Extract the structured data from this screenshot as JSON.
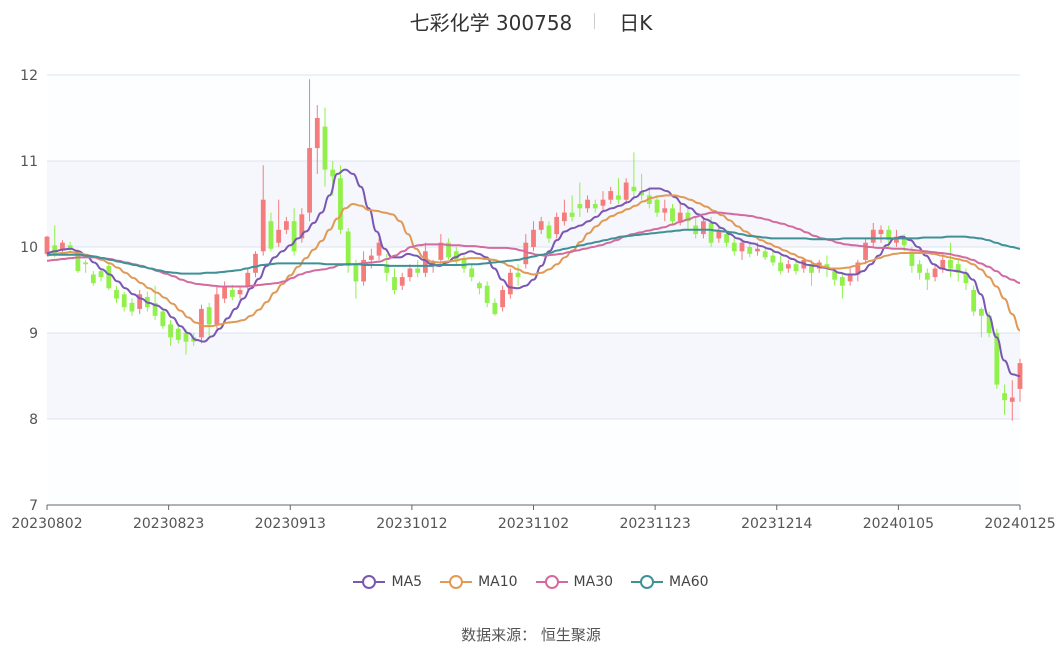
{
  "header": {
    "title": "七彩化学 300758",
    "period": "日K"
  },
  "source": "数据来源： 恒生聚源",
  "chart_data": {
    "type": "candlestick",
    "ylim": [
      7,
      12
    ],
    "yticks": [
      7,
      8,
      9,
      10,
      11,
      12
    ],
    "xtick_labels": [
      "20230802",
      "20230823",
      "20230913",
      "20231012",
      "20231102",
      "20231123",
      "20231214",
      "20240105",
      "20240125"
    ],
    "colors": {
      "up": "#f47c7c",
      "down": "#91f04a",
      "band": "#f3f5fb",
      "grid": "#dde3ee"
    },
    "candles": [
      [
        9.92,
        10.12,
        9.9,
        10.13
      ],
      [
        10.02,
        9.92,
        9.88,
        10.25
      ],
      [
        9.96,
        10.05,
        9.94,
        10.08
      ],
      [
        10.02,
        9.97,
        9.93,
        10.06
      ],
      [
        9.92,
        9.72,
        9.7,
        9.98
      ],
      [
        9.82,
        9.8,
        9.7,
        9.85
      ],
      [
        9.68,
        9.58,
        9.55,
        9.72
      ],
      [
        9.72,
        9.65,
        9.6,
        9.75
      ],
      [
        9.78,
        9.52,
        9.5,
        9.8
      ],
      [
        9.5,
        9.4,
        9.35,
        9.55
      ],
      [
        9.45,
        9.3,
        9.25,
        9.48
      ],
      [
        9.35,
        9.25,
        9.2,
        9.4
      ],
      [
        9.28,
        9.45,
        9.22,
        9.5
      ],
      [
        9.42,
        9.3,
        9.25,
        9.48
      ],
      [
        9.35,
        9.2,
        9.15,
        9.55
      ],
      [
        9.25,
        9.08,
        9.05,
        9.3
      ],
      [
        9.1,
        8.95,
        8.85,
        9.15
      ],
      [
        9.05,
        8.92,
        8.88,
        9.1
      ],
      [
        9.0,
        8.9,
        8.75,
        9.05
      ],
      [
        8.95,
        8.9,
        8.85,
        9.0
      ],
      [
        8.95,
        9.28,
        8.88,
        9.33
      ],
      [
        9.3,
        9.1,
        8.95,
        9.35
      ],
      [
        9.1,
        9.45,
        9.05,
        9.55
      ],
      [
        9.4,
        9.55,
        9.35,
        9.6
      ],
      [
        9.5,
        9.42,
        9.38,
        9.56
      ],
      [
        9.45,
        9.5,
        9.4,
        9.55
      ],
      [
        9.55,
        9.7,
        9.5,
        9.75
      ],
      [
        9.7,
        9.92,
        9.65,
        9.95
      ],
      [
        9.95,
        10.55,
        9.9,
        10.95
      ],
      [
        10.3,
        9.98,
        9.95,
        10.4
      ],
      [
        10.05,
        10.2,
        10.0,
        10.55
      ],
      [
        10.2,
        10.3,
        10.15,
        10.35
      ],
      [
        10.3,
        9.95,
        9.9,
        10.45
      ],
      [
        10.1,
        10.38,
        10.05,
        10.45
      ],
      [
        10.4,
        11.15,
        10.3,
        11.95
      ],
      [
        11.15,
        11.5,
        10.85,
        11.65
      ],
      [
        11.4,
        10.9,
        10.7,
        11.62
      ],
      [
        10.9,
        10.82,
        10.6,
        11.0
      ],
      [
        10.8,
        10.2,
        10.15,
        10.95
      ],
      [
        10.18,
        9.78,
        9.7,
        10.22
      ],
      [
        9.8,
        9.6,
        9.4,
        9.85
      ],
      [
        9.6,
        9.85,
        9.55,
        9.95
      ],
      [
        9.85,
        9.9,
        9.75,
        9.98
      ],
      [
        9.9,
        10.05,
        9.85,
        10.1
      ],
      [
        9.8,
        9.7,
        9.6,
        9.92
      ],
      [
        9.65,
        9.5,
        9.45,
        9.75
      ],
      [
        9.55,
        9.65,
        9.5,
        9.7
      ],
      [
        9.65,
        9.75,
        9.6,
        9.8
      ],
      [
        9.75,
        9.7,
        9.65,
        9.85
      ],
      [
        9.7,
        9.95,
        9.65,
        10.05
      ],
      [
        9.8,
        9.82,
        9.7,
        9.85
      ],
      [
        9.85,
        10.05,
        9.8,
        10.15
      ],
      [
        10.05,
        9.88,
        9.85,
        10.1
      ],
      [
        9.95,
        9.85,
        9.8,
        10.0
      ],
      [
        9.85,
        9.75,
        9.7,
        9.9
      ],
      [
        9.75,
        9.65,
        9.6,
        9.8
      ],
      [
        9.58,
        9.52,
        9.45,
        9.6
      ],
      [
        9.55,
        9.35,
        9.3,
        9.6
      ],
      [
        9.35,
        9.22,
        9.2,
        9.4
      ],
      [
        9.3,
        9.5,
        9.25,
        9.55
      ],
      [
        9.45,
        9.7,
        9.4,
        9.75
      ],
      [
        9.7,
        9.65,
        9.55,
        9.8
      ],
      [
        9.8,
        10.05,
        9.75,
        10.15
      ],
      [
        10.0,
        10.2,
        9.95,
        10.3
      ],
      [
        10.2,
        10.3,
        10.15,
        10.35
      ],
      [
        10.25,
        10.1,
        10.05,
        10.3
      ],
      [
        10.15,
        10.35,
        10.1,
        10.4
      ],
      [
        10.3,
        10.4,
        10.25,
        10.55
      ],
      [
        10.4,
        10.35,
        10.3,
        10.6
      ],
      [
        10.5,
        10.45,
        10.35,
        10.75
      ],
      [
        10.45,
        10.55,
        10.4,
        10.6
      ],
      [
        10.5,
        10.45,
        10.4,
        10.55
      ],
      [
        10.48,
        10.55,
        10.4,
        10.65
      ],
      [
        10.55,
        10.65,
        10.5,
        10.7
      ],
      [
        10.6,
        10.55,
        10.5,
        10.8
      ],
      [
        10.55,
        10.75,
        10.5,
        10.8
      ],
      [
        10.7,
        10.65,
        10.55,
        11.1
      ],
      [
        10.65,
        10.6,
        10.55,
        10.85
      ],
      [
        10.6,
        10.5,
        10.45,
        10.7
      ],
      [
        10.55,
        10.4,
        10.35,
        10.6
      ],
      [
        10.4,
        10.45,
        10.3,
        10.55
      ],
      [
        10.45,
        10.3,
        10.25,
        10.5
      ],
      [
        10.3,
        10.4,
        10.25,
        10.5
      ],
      [
        10.4,
        10.3,
        10.2,
        10.45
      ],
      [
        10.25,
        10.15,
        10.1,
        10.35
      ],
      [
        10.15,
        10.3,
        10.1,
        10.35
      ],
      [
        10.28,
        10.05,
        10.0,
        10.35
      ],
      [
        10.1,
        10.18,
        10.05,
        10.25
      ],
      [
        10.15,
        10.05,
        10.0,
        10.2
      ],
      [
        10.05,
        9.95,
        9.9,
        10.1
      ],
      [
        9.95,
        10.05,
        9.85,
        10.1
      ],
      [
        10.0,
        9.92,
        9.88,
        10.05
      ],
      [
        9.95,
        9.98,
        9.9,
        10.05
      ],
      [
        9.95,
        9.88,
        9.85,
        10.0
      ],
      [
        9.9,
        9.82,
        9.78,
        9.95
      ],
      [
        9.82,
        9.72,
        9.68,
        9.9
      ],
      [
        9.75,
        9.8,
        9.7,
        9.85
      ],
      [
        9.8,
        9.72,
        9.68,
        9.85
      ],
      [
        9.75,
        9.85,
        9.7,
        9.88
      ],
      [
        9.8,
        9.7,
        9.55,
        9.85
      ],
      [
        9.75,
        9.82,
        9.7,
        9.85
      ],
      [
        9.8,
        9.75,
        9.65,
        9.9
      ],
      [
        9.72,
        9.62,
        9.55,
        9.75
      ],
      [
        9.65,
        9.55,
        9.4,
        9.7
      ],
      [
        9.6,
        9.68,
        9.55,
        9.75
      ],
      [
        9.68,
        9.82,
        9.6,
        9.85
      ],
      [
        9.85,
        10.05,
        9.8,
        10.1
      ],
      [
        10.05,
        10.2,
        10.0,
        10.28
      ],
      [
        10.15,
        10.2,
        10.05,
        10.25
      ],
      [
        10.2,
        10.08,
        10.0,
        10.25
      ],
      [
        10.05,
        10.12,
        10.0,
        10.2
      ],
      [
        10.1,
        10.02,
        9.95,
        10.15
      ],
      [
        9.95,
        9.78,
        9.7,
        10.0
      ],
      [
        9.8,
        9.7,
        9.62,
        9.85
      ],
      [
        9.7,
        9.62,
        9.5,
        9.75
      ],
      [
        9.65,
        9.75,
        9.6,
        9.8
      ],
      [
        9.75,
        9.85,
        9.7,
        9.92
      ],
      [
        9.85,
        9.75,
        9.65,
        10.05
      ],
      [
        9.8,
        9.7,
        9.6,
        9.85
      ],
      [
        9.7,
        9.58,
        9.5,
        9.75
      ],
      [
        9.5,
        9.25,
        9.2,
        9.55
      ],
      [
        9.28,
        9.2,
        8.95,
        9.3
      ],
      [
        9.2,
        9.0,
        8.95,
        9.25
      ],
      [
        9.0,
        8.4,
        8.35,
        9.05
      ],
      [
        8.3,
        8.22,
        8.05,
        8.4
      ],
      [
        8.2,
        8.25,
        7.98,
        8.45
      ],
      [
        8.35,
        8.65,
        8.2,
        8.7
      ]
    ],
    "series": [
      {
        "name": "MA5",
        "color": "#7b57b4",
        "values": [
          9.93,
          9.95,
          9.97,
          9.98,
          9.95,
          9.9,
          9.82,
          9.74,
          9.68,
          9.6,
          9.52,
          9.45,
          9.4,
          9.35,
          9.32,
          9.27,
          9.18,
          9.08,
          9.0,
          8.92,
          8.9,
          8.96,
          9.05,
          9.17,
          9.28,
          9.4,
          9.52,
          9.63,
          9.78,
          9.88,
          9.95,
          10.02,
          10.1,
          10.18,
          10.28,
          10.4,
          10.6,
          10.85,
          10.9,
          10.85,
          10.7,
          10.45,
          10.18,
          9.98,
          9.88,
          9.88,
          9.92,
          9.9,
          9.85,
          9.8,
          9.78,
          9.82,
          9.88,
          9.92,
          9.95,
          9.92,
          9.88,
          9.75,
          9.62,
          9.53,
          9.52,
          9.55,
          9.62,
          9.78,
          9.95,
          10.08,
          10.18,
          10.22,
          10.25,
          10.3,
          10.35,
          10.42,
          10.45,
          10.48,
          10.52,
          10.58,
          10.65,
          10.68,
          10.68,
          10.65,
          10.58,
          10.5,
          10.45,
          10.38,
          10.32,
          10.28,
          10.22,
          10.15,
          10.1,
          10.06,
          10.04,
          10.01,
          9.98,
          9.94,
          9.9,
          9.86,
          9.82,
          9.79,
          9.78,
          9.76,
          9.74,
          9.7,
          9.68,
          9.68,
          9.72,
          9.8,
          9.9,
          10.02,
          10.1,
          10.12,
          10.08,
          10.0,
          9.9,
          9.8,
          9.75,
          9.73,
          9.72,
          9.7,
          9.62,
          9.45,
          9.2,
          8.95,
          8.68,
          8.52,
          8.5
        ]
      },
      {
        "name": "MA10",
        "color": "#e09a56",
        "values": [
          9.9,
          9.92,
          9.93,
          9.94,
          9.93,
          9.91,
          9.88,
          9.85,
          9.81,
          9.76,
          9.7,
          9.64,
          9.58,
          9.52,
          9.47,
          9.41,
          9.34,
          9.26,
          9.18,
          9.12,
          9.08,
          9.08,
          9.1,
          9.12,
          9.13,
          9.15,
          9.2,
          9.27,
          9.36,
          9.47,
          9.57,
          9.67,
          9.77,
          9.87,
          9.97,
          10.07,
          10.2,
          10.33,
          10.45,
          10.5,
          10.48,
          10.43,
          10.42,
          10.4,
          10.38,
          10.3,
          10.15,
          9.98,
          9.88,
          9.83,
          9.82,
          9.83,
          9.84,
          9.86,
          9.87,
          9.87,
          9.86,
          9.85,
          9.82,
          9.78,
          9.74,
          9.7,
          9.68,
          9.7,
          9.74,
          9.8,
          9.88,
          9.96,
          10.06,
          10.16,
          10.24,
          10.31,
          10.36,
          10.4,
          10.44,
          10.48,
          10.53,
          10.57,
          10.59,
          10.6,
          10.6,
          10.58,
          10.55,
          10.51,
          10.47,
          10.42,
          10.37,
          10.31,
          10.24,
          10.18,
          10.13,
          10.08,
          10.04,
          10.0,
          9.96,
          9.92,
          9.88,
          9.84,
          9.8,
          9.77,
          9.75,
          9.75,
          9.76,
          9.78,
          9.81,
          9.84,
          9.87,
          9.9,
          9.92,
          9.93,
          9.93,
          9.93,
          9.93,
          9.92,
          9.9,
          9.88,
          9.86,
          9.84,
          9.8,
          9.74,
          9.65,
          9.54,
          9.4,
          9.22,
          9.03
        ]
      },
      {
        "name": "MA30",
        "color": "#d36b9e",
        "values": [
          9.84,
          9.85,
          9.86,
          9.87,
          9.88,
          9.88,
          9.88,
          9.87,
          9.86,
          9.84,
          9.82,
          9.8,
          9.78,
          9.75,
          9.72,
          9.69,
          9.66,
          9.62,
          9.59,
          9.57,
          9.56,
          9.55,
          9.54,
          9.54,
          9.54,
          9.54,
          9.55,
          9.56,
          9.57,
          9.58,
          9.6,
          9.64,
          9.68,
          9.71,
          9.73,
          9.74,
          9.76,
          9.79,
          9.8,
          9.8,
          9.81,
          9.82,
          9.83,
          9.86,
          9.9,
          9.95,
          10.0,
          10.02,
          10.03,
          10.03,
          10.03,
          10.02,
          10.02,
          10.01,
          10.01,
          10.0,
          9.99,
          9.99,
          9.99,
          9.98,
          9.96,
          9.93,
          9.91,
          9.9,
          9.91,
          9.92,
          9.94,
          9.96,
          9.98,
          10.0,
          10.02,
          10.05,
          10.08,
          10.12,
          10.15,
          10.17,
          10.19,
          10.21,
          10.23,
          10.26,
          10.29,
          10.32,
          10.35,
          10.38,
          10.4,
          10.4,
          10.39,
          10.38,
          10.37,
          10.36,
          10.34,
          10.32,
          10.29,
          10.27,
          10.24,
          10.21,
          10.17,
          10.13,
          10.1,
          10.08,
          10.05,
          10.03,
          10.02,
          10.01,
          10.0,
          9.99,
          9.99,
          9.98,
          9.98,
          9.97,
          9.96,
          9.95,
          9.94,
          9.93,
          9.92,
          9.9,
          9.88,
          9.85,
          9.81,
          9.77,
          9.72,
          9.66,
          9.62,
          9.58
        ]
      },
      {
        "name": "MA60",
        "color": "#3f9196",
        "values": [
          9.91,
          9.91,
          9.91,
          9.91,
          9.91,
          9.9,
          9.89,
          9.87,
          9.85,
          9.83,
          9.81,
          9.79,
          9.77,
          9.75,
          9.73,
          9.71,
          9.7,
          9.69,
          9.69,
          9.69,
          9.7,
          9.7,
          9.71,
          9.72,
          9.73,
          9.75,
          9.77,
          9.79,
          9.8,
          9.81,
          9.81,
          9.81,
          9.81,
          9.81,
          9.81,
          9.8,
          9.8,
          9.8,
          9.8,
          9.8,
          9.79,
          9.79,
          9.79,
          9.78,
          9.78,
          9.78,
          9.78,
          9.78,
          9.78,
          9.79,
          9.79,
          9.79,
          9.79,
          9.8,
          9.8,
          9.81,
          9.82,
          9.83,
          9.84,
          9.85,
          9.87,
          9.89,
          9.91,
          9.93,
          9.96,
          9.98,
          10.0,
          10.02,
          10.04,
          10.06,
          10.08,
          10.1,
          10.12,
          10.13,
          10.14,
          10.15,
          10.16,
          10.17,
          10.18,
          10.19,
          10.2,
          10.2,
          10.2,
          10.2,
          10.19,
          10.18,
          10.17,
          10.15,
          10.13,
          10.12,
          10.11,
          10.1,
          10.1,
          10.1,
          10.1,
          10.1,
          10.09,
          10.09,
          10.09,
          10.09,
          10.1,
          10.1,
          10.1,
          10.1,
          10.1,
          10.1,
          10.1,
          10.1,
          10.1,
          10.1,
          10.11,
          10.11,
          10.11,
          10.12,
          10.12,
          10.12,
          10.11,
          10.1,
          10.08,
          10.05,
          10.02,
          10.0,
          9.98
        ]
      }
    ]
  }
}
